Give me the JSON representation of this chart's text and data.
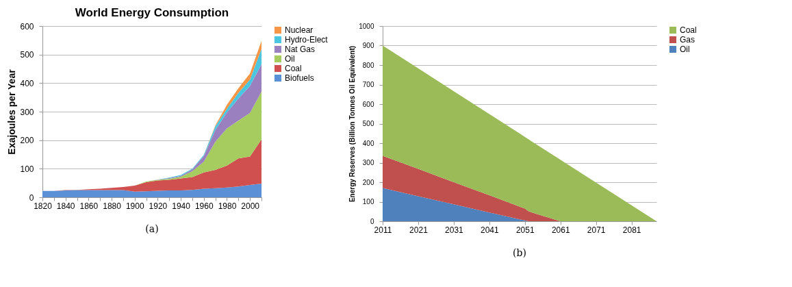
{
  "chart_data": [
    {
      "type": "area",
      "stacked": true,
      "title": "World Energy Consumption",
      "ylabel": "Exajoules per Year",
      "x": [
        1820,
        1830,
        1840,
        1850,
        1860,
        1870,
        1880,
        1890,
        1900,
        1910,
        1920,
        1930,
        1940,
        1950,
        1960,
        1970,
        1980,
        1990,
        2000,
        2010
      ],
      "series": [
        {
          "name": "Biofuels",
          "color": "#5b8fd6",
          "values": [
            22,
            22,
            24,
            25,
            25,
            25,
            25,
            25,
            20,
            21,
            23,
            24,
            24,
            26,
            30,
            32,
            34,
            38,
            43,
            48
          ]
        },
        {
          "name": "Coal",
          "color": "#d05050",
          "values": [
            0,
            0,
            1,
            1,
            3,
            5,
            8,
            11,
            21,
            32,
            36,
            37,
            42,
            45,
            57,
            64,
            77,
            98,
            100,
            155
          ]
        },
        {
          "name": "Oil",
          "color": "#a6cc60",
          "values": [
            0,
            0,
            0,
            0,
            0,
            0,
            0,
            0,
            0,
            2,
            2,
            4,
            6,
            20,
            38,
            99,
            130,
            133,
            152,
            167
          ]
        },
        {
          "name": "Nat Gas",
          "color": "#9a80be",
          "values": [
            0,
            0,
            0,
            0,
            0,
            0,
            0,
            0,
            0,
            0,
            1,
            2,
            3,
            7,
            20,
            41,
            56,
            77,
            95,
            96
          ]
        },
        {
          "name": "Hydro-Elect",
          "color": "#4bc6e0",
          "values": [
            0,
            0,
            0,
            0,
            0,
            0,
            0,
            0,
            0,
            0,
            0,
            2,
            3,
            2,
            4,
            13,
            13,
            20,
            22,
            54
          ]
        },
        {
          "name": "Nuclear",
          "color": "#f79646",
          "values": [
            0,
            0,
            0,
            0,
            0,
            0,
            0,
            0,
            0,
            0,
            0,
            0,
            0,
            0,
            0,
            3,
            14,
            16,
            22,
            28
          ]
        }
      ],
      "xlim": [
        1820,
        2010
      ],
      "xticks": [
        1820,
        {
          "value": 1830,
          "label": null
        },
        1840,
        {
          "value": 1850,
          "label": null
        },
        1860,
        {
          "value": 1870,
          "label": null
        },
        1880,
        {
          "value": 1890,
          "label": null
        },
        1900,
        {
          "value": 1910,
          "label": null
        },
        1920,
        {
          "value": 1930,
          "label": null
        },
        1940,
        {
          "value": 1950,
          "label": null
        },
        1960,
        {
          "value": 1970,
          "label": null
        },
        1980,
        {
          "value": 1990,
          "label": null
        },
        2000,
        {
          "value": 2010,
          "label": null
        }
      ],
      "ylim": [
        0,
        600
      ],
      "yticks": [
        0,
        100,
        200,
        300,
        400,
        500,
        600
      ],
      "grid": "y",
      "legend": "right",
      "annotations": [
        "(a)"
      ]
    },
    {
      "type": "area",
      "stacked": true,
      "ylabel": "Energy Reserves (Billion Tonnes Oil Equivalent)",
      "x": [
        2011,
        2021,
        2031,
        2041,
        2051,
        2052,
        2053,
        2061,
        2071,
        2081,
        2088
      ],
      "series": [
        {
          "name": "Oil",
          "color": "#4f81bd",
          "values": [
            170,
            128,
            87,
            45,
            4,
            0,
            0,
            0,
            0,
            0,
            0
          ]
        },
        {
          "name": "Gas",
          "color": "#c0504d",
          "values": [
            165,
            140,
            113,
            88,
            61,
            52,
            45,
            0,
            0,
            0,
            0
          ]
        },
        {
          "name": "Coal",
          "color": "#9bbb59",
          "values": [
            565,
            515,
            466,
            416,
            367,
            368,
            363,
            315,
            198,
            82,
            0
          ]
        }
      ],
      "xlim": [
        2011,
        2088
      ],
      "xticks": [
        2011,
        2021,
        2031,
        2041,
        2051,
        2061,
        2071,
        2081
      ],
      "ylim": [
        0,
        1000
      ],
      "yticks": [
        0,
        100,
        200,
        300,
        400,
        500,
        600,
        700,
        800,
        900,
        1000
      ],
      "grid": "y",
      "legend": "right",
      "annotations": [
        "(b)"
      ]
    }
  ]
}
